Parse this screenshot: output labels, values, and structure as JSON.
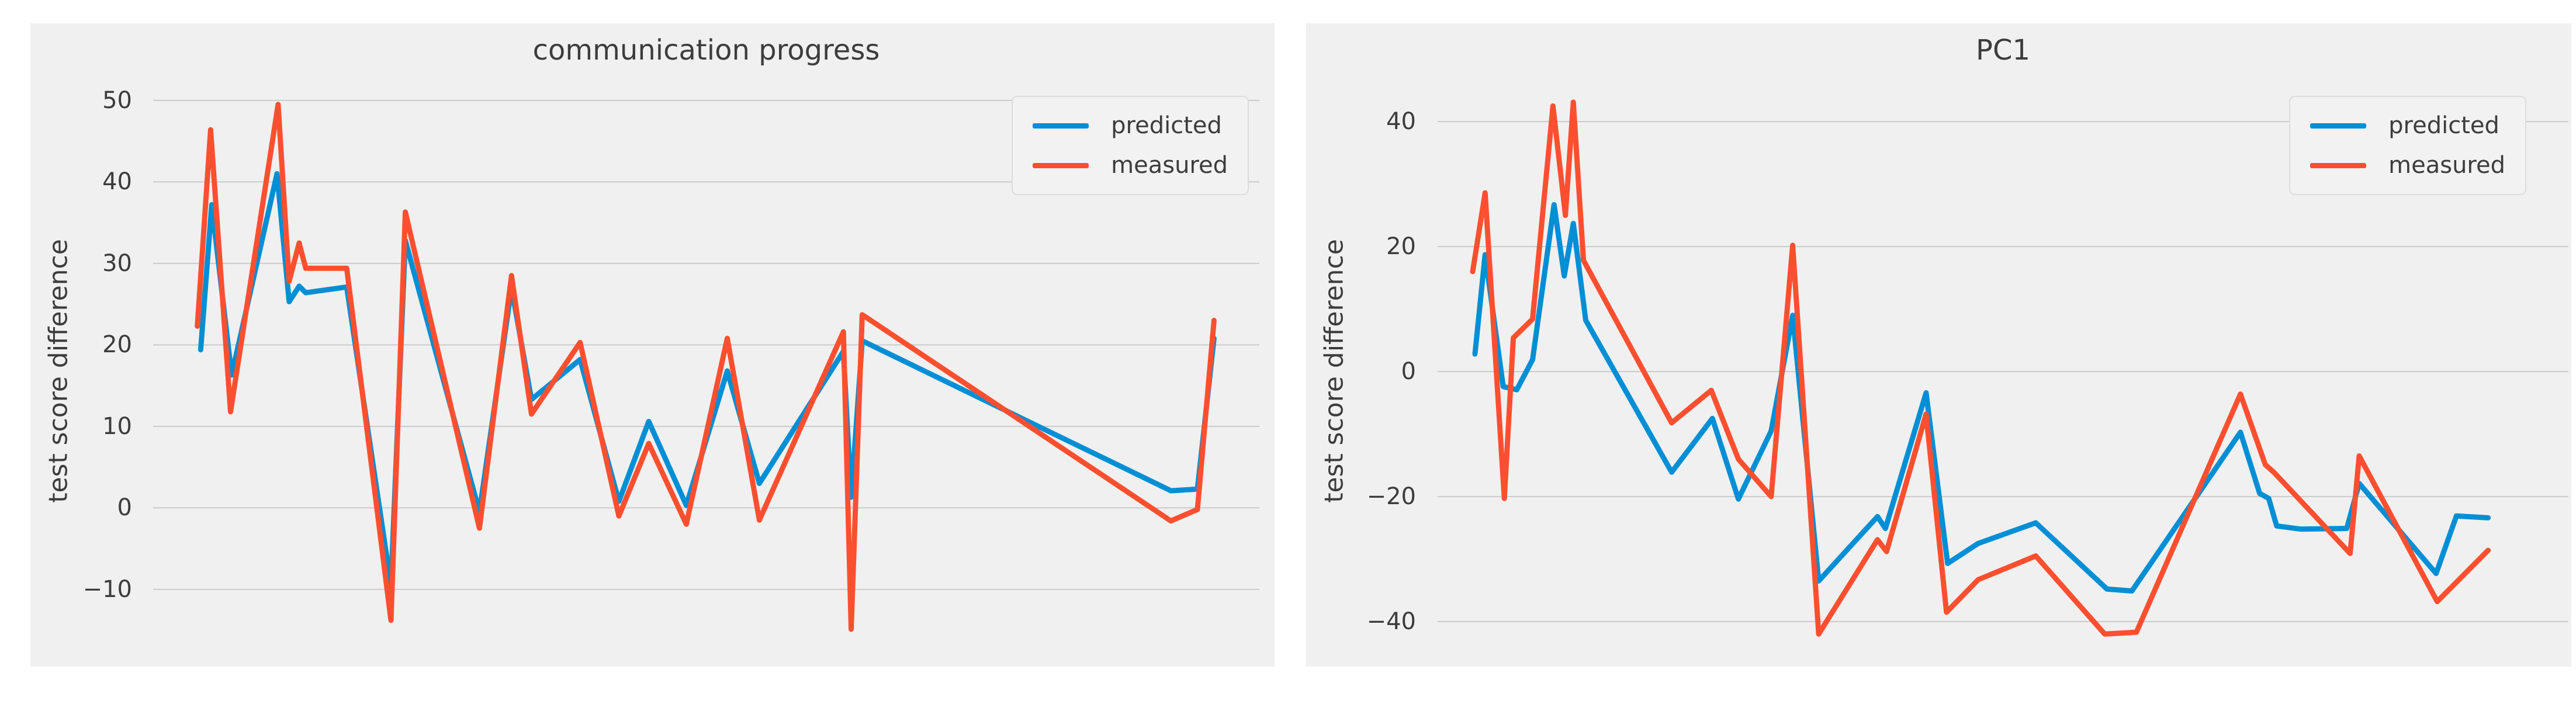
{
  "page": {
    "background_color": "#ffffff",
    "figure_background_color": "#f0f0f0",
    "grid_color": "#cbcbcb",
    "text_color": "#3c3c3c"
  },
  "chart_data": [
    {
      "type": "line",
      "title": "communication progress",
      "xlabel": "",
      "ylabel": "test score difference",
      "ylim": [
        -19.4,
        53.0
      ],
      "yticks": [
        50,
        40,
        30,
        20,
        10,
        0,
        -10
      ],
      "xticks_visible": false,
      "grid": true,
      "legend_position": "upper right",
      "legend_entries": [
        "predicted",
        "measured"
      ],
      "series": [
        {
          "name": "predicted",
          "color": "#008fd5",
          "points": [
            [
              0.043,
              19.4
            ],
            [
              0.053,
              37.2
            ],
            [
              0.071,
              16.3
            ],
            [
              0.112,
              41.0
            ],
            [
              0.123,
              25.3
            ],
            [
              0.132,
              27.2
            ],
            [
              0.138,
              26.4
            ],
            [
              0.175,
              27.1
            ],
            [
              0.215,
              -9.5
            ],
            [
              0.228,
              32.8
            ],
            [
              0.295,
              -0.5
            ],
            [
              0.324,
              27.0
            ],
            [
              0.342,
              13.3
            ],
            [
              0.386,
              18.2
            ],
            [
              0.421,
              0.8
            ],
            [
              0.448,
              10.6
            ],
            [
              0.482,
              0.3
            ],
            [
              0.519,
              16.8
            ],
            [
              0.548,
              3.0
            ],
            [
              0.624,
              19.2
            ],
            [
              0.631,
              1.3
            ],
            [
              0.641,
              20.5
            ],
            [
              0.92,
              2.1
            ],
            [
              0.944,
              2.3
            ],
            [
              0.959,
              20.8
            ]
          ]
        },
        {
          "name": "measured",
          "color": "#fc4f30",
          "points": [
            [
              0.04,
              22.3
            ],
            [
              0.052,
              46.4
            ],
            [
              0.07,
              11.8
            ],
            [
              0.113,
              49.5
            ],
            [
              0.123,
              27.8
            ],
            [
              0.132,
              32.5
            ],
            [
              0.138,
              29.4
            ],
            [
              0.175,
              29.4
            ],
            [
              0.215,
              -13.8
            ],
            [
              0.228,
              36.3
            ],
            [
              0.295,
              -2.5
            ],
            [
              0.324,
              28.5
            ],
            [
              0.342,
              11.5
            ],
            [
              0.386,
              20.3
            ],
            [
              0.421,
              -1.0
            ],
            [
              0.448,
              7.9
            ],
            [
              0.482,
              -2.0
            ],
            [
              0.519,
              20.8
            ],
            [
              0.548,
              -1.5
            ],
            [
              0.624,
              21.6
            ],
            [
              0.631,
              -14.9
            ],
            [
              0.641,
              23.7
            ],
            [
              0.92,
              -1.6
            ],
            [
              0.944,
              -0.2
            ],
            [
              0.959,
              23.0
            ]
          ]
        }
      ]
    },
    {
      "type": "line",
      "title": "PC1",
      "xlabel": "",
      "ylabel": "test score difference",
      "ylim": [
        -47.1,
        47.3
      ],
      "yticks": [
        40,
        20,
        0,
        -20,
        -40
      ],
      "xticks_visible": false,
      "grid": true,
      "legend_position": "upper right",
      "legend_entries": [
        "predicted",
        "measured"
      ],
      "series": [
        {
          "name": "predicted",
          "color": "#008fd5",
          "points": [
            [
              0.033,
              2.8
            ],
            [
              0.042,
              18.7
            ],
            [
              0.058,
              -2.4
            ],
            [
              0.07,
              -2.9
            ],
            [
              0.084,
              1.9
            ],
            [
              0.103,
              26.7
            ],
            [
              0.112,
              15.3
            ],
            [
              0.12,
              23.7
            ],
            [
              0.131,
              8.2
            ],
            [
              0.207,
              -16.1
            ],
            [
              0.243,
              -7.5
            ],
            [
              0.266,
              -20.4
            ],
            [
              0.295,
              -9.5
            ],
            [
              0.314,
              9.0
            ],
            [
              0.337,
              -33.5
            ],
            [
              0.389,
              -23.2
            ],
            [
              0.396,
              -25.1
            ],
            [
              0.432,
              -3.4
            ],
            [
              0.451,
              -30.7
            ],
            [
              0.478,
              -27.5
            ],
            [
              0.529,
              -24.2
            ],
            [
              0.592,
              -34.8
            ],
            [
              0.614,
              -35.1
            ],
            [
              0.71,
              -9.7
            ],
            [
              0.727,
              -19.5
            ],
            [
              0.735,
              -20.3
            ],
            [
              0.742,
              -24.7
            ],
            [
              0.763,
              -25.2
            ],
            [
              0.804,
              -25.1
            ],
            [
              0.815,
              -17.9
            ],
            [
              0.883,
              -32.3
            ],
            [
              0.901,
              -23.1
            ],
            [
              0.929,
              -23.4
            ]
          ]
        },
        {
          "name": "measured",
          "color": "#fc4f30",
          "points": [
            [
              0.031,
              16.0
            ],
            [
              0.042,
              28.6
            ],
            [
              0.059,
              -20.3
            ],
            [
              0.067,
              5.4
            ],
            [
              0.084,
              8.4
            ],
            [
              0.102,
              42.5
            ],
            [
              0.113,
              25.0
            ],
            [
              0.12,
              43.1
            ],
            [
              0.129,
              17.8
            ],
            [
              0.207,
              -8.2
            ],
            [
              0.242,
              -3.0
            ],
            [
              0.266,
              -14.0
            ],
            [
              0.295,
              -20.0
            ],
            [
              0.314,
              20.2
            ],
            [
              0.337,
              -42.0
            ],
            [
              0.389,
              -26.9
            ],
            [
              0.397,
              -28.8
            ],
            [
              0.432,
              -6.8
            ],
            [
              0.45,
              -38.5
            ],
            [
              0.478,
              -33.3
            ],
            [
              0.529,
              -29.5
            ],
            [
              0.59,
              -42.0
            ],
            [
              0.618,
              -41.7
            ],
            [
              0.71,
              -3.6
            ],
            [
              0.732,
              -14.9
            ],
            [
              0.74,
              -16.2
            ],
            [
              0.807,
              -29.1
            ],
            [
              0.815,
              -13.5
            ],
            [
              0.884,
              -36.8
            ],
            [
              0.929,
              -28.6
            ]
          ]
        }
      ]
    }
  ]
}
